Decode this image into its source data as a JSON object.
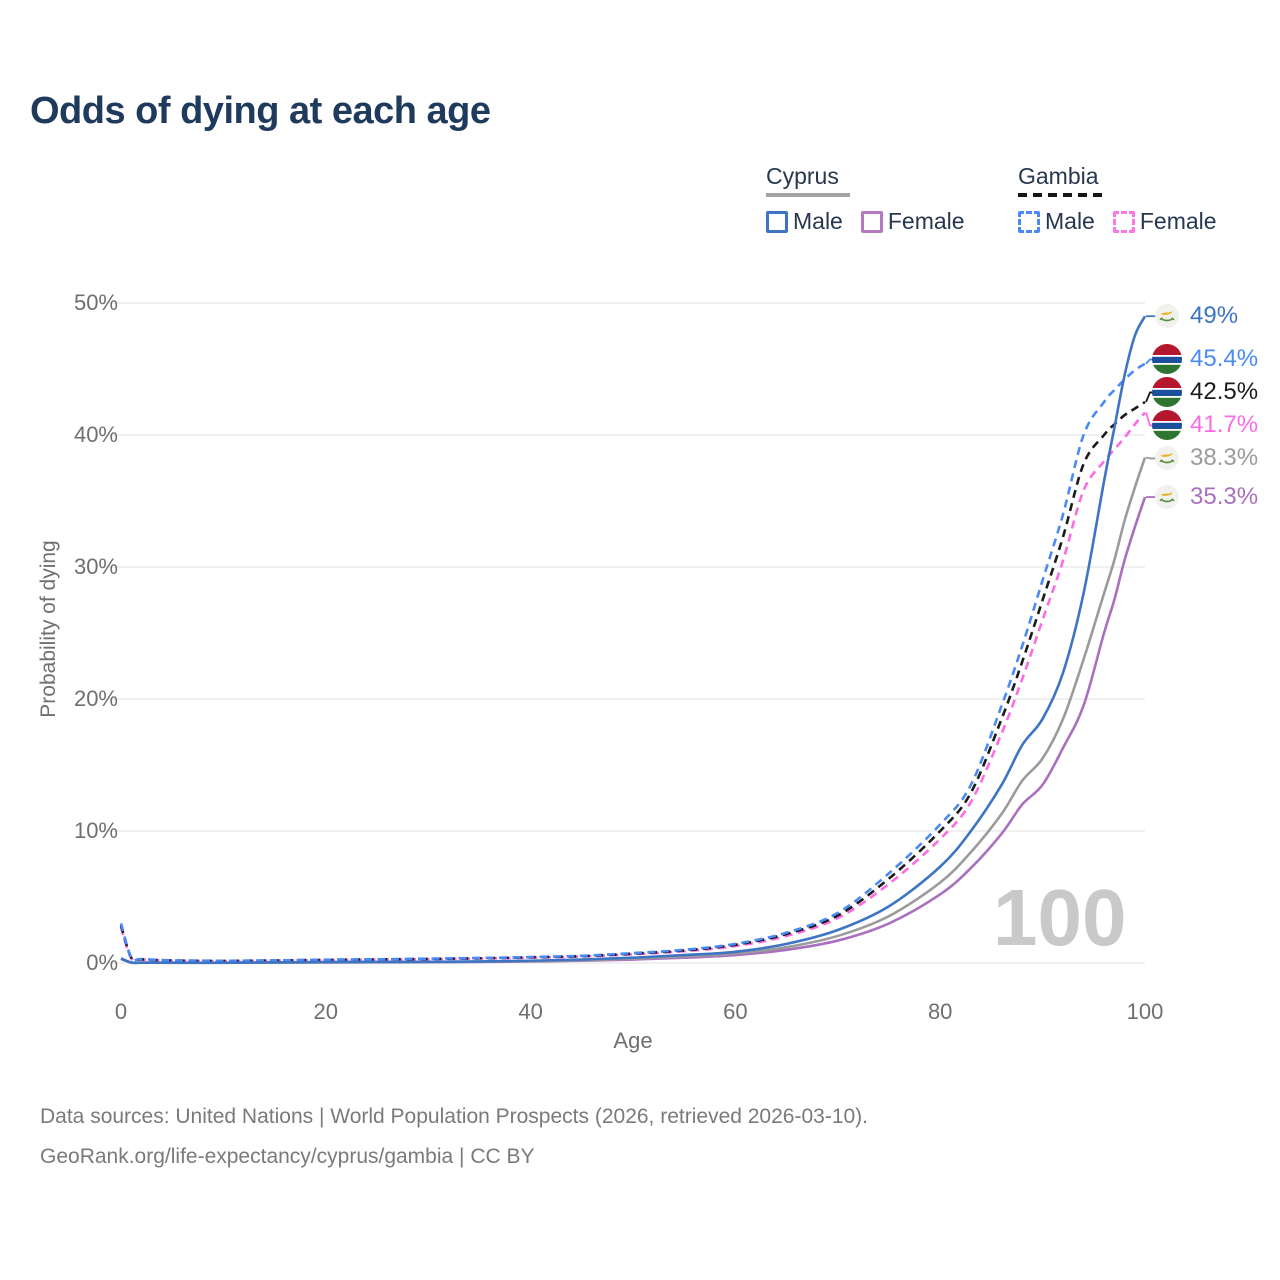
{
  "title": "Odds of dying at each age",
  "watermark": "100",
  "legend": {
    "groups": [
      {
        "country": "Cyprus",
        "line_style": "solid",
        "underline_color": "#a3a3a3",
        "items": [
          {
            "label": "Male",
            "color": "#3e74c4",
            "dashed": false
          },
          {
            "label": "Female",
            "color": "#b678c0",
            "dashed": false
          }
        ]
      },
      {
        "country": "Gambia",
        "line_style": "dashed",
        "underline_color": "#161616",
        "items": [
          {
            "label": "Male",
            "color": "#4b8af5",
            "dashed": true
          },
          {
            "label": "Female",
            "color": "#fb77e8",
            "dashed": true
          }
        ]
      }
    ]
  },
  "chart_data": {
    "type": "line",
    "title": "Odds of dying at each age",
    "xlabel": "Age",
    "ylabel": "Probability of dying",
    "xlim": [
      0,
      100
    ],
    "ylim": [
      0,
      50
    ],
    "grid": "horizontal",
    "x_ticks": [
      {
        "value": 0,
        "label": "0"
      },
      {
        "value": 20,
        "label": "20"
      },
      {
        "value": 40,
        "label": "40"
      },
      {
        "value": 60,
        "label": "60"
      },
      {
        "value": 80,
        "label": "80"
      },
      {
        "value": 100,
        "label": "100"
      }
    ],
    "y_ticks": [
      {
        "value": 0,
        "label": "0%"
      },
      {
        "value": 10,
        "label": "10%"
      },
      {
        "value": 20,
        "label": "20%"
      },
      {
        "value": 30,
        "label": "30%"
      },
      {
        "value": 40,
        "label": "40%"
      },
      {
        "value": 50,
        "label": "50%"
      }
    ],
    "ages": [
      0,
      1,
      2,
      5,
      10,
      15,
      20,
      25,
      30,
      35,
      40,
      45,
      50,
      55,
      60,
      65,
      70,
      75,
      80,
      83,
      86,
      88,
      90,
      92,
      94,
      96,
      97,
      98,
      99,
      100
    ],
    "series": [
      {
        "name": "Cyprus Female",
        "country": "Cyprus",
        "sex": "Female",
        "line": "solid",
        "color": "#aa6fbe",
        "flag": "cyprus",
        "end_label": "35.3%",
        "end_value": 35.3,
        "values": [
          0.3,
          0.03,
          0.02,
          0.015,
          0.015,
          0.03,
          0.04,
          0.05,
          0.06,
          0.08,
          0.12,
          0.17,
          0.26,
          0.4,
          0.6,
          1.0,
          1.7,
          3.0,
          5.2,
          7.2,
          9.8,
          12.0,
          13.5,
          16.3,
          19.5,
          25.0,
          27.5,
          30.5,
          33.0,
          35.3
        ]
      },
      {
        "name": "Cyprus Both sexes",
        "country": "Cyprus",
        "sex": "Both",
        "line": "solid",
        "color": "#9b9b9b",
        "flag": "cyprus",
        "end_label": "38.3%",
        "end_value": 38.3,
        "values": [
          0.32,
          0.035,
          0.022,
          0.018,
          0.018,
          0.035,
          0.055,
          0.065,
          0.075,
          0.1,
          0.14,
          0.21,
          0.33,
          0.5,
          0.72,
          1.2,
          2.05,
          3.55,
          6.1,
          8.4,
          11.3,
          13.8,
          15.5,
          18.5,
          23.0,
          28.0,
          30.5,
          33.5,
          36.0,
          38.3
        ]
      },
      {
        "name": "Gambia Female",
        "country": "Gambia",
        "sex": "Female",
        "line": "dashed",
        "color": "#fb6ce4",
        "flag": "gambia",
        "end_label": "41.7%",
        "end_value": 41.7,
        "values": [
          2.7,
          0.38,
          0.26,
          0.18,
          0.15,
          0.18,
          0.22,
          0.25,
          0.29,
          0.34,
          0.4,
          0.49,
          0.66,
          0.89,
          1.28,
          2.05,
          3.4,
          6.0,
          9.4,
          12.2,
          17.4,
          21.5,
          26.0,
          30.5,
          35.8,
          38.0,
          38.9,
          39.8,
          40.8,
          41.7
        ]
      },
      {
        "name": "Gambia Both sexes",
        "country": "Gambia",
        "sex": "Both",
        "line": "dashed",
        "color": "#1b1b1b",
        "flag": "gambia",
        "end_label": "42.5%",
        "end_value": 42.5,
        "values": [
          2.85,
          0.4,
          0.28,
          0.19,
          0.16,
          0.19,
          0.24,
          0.27,
          0.31,
          0.36,
          0.43,
          0.52,
          0.71,
          0.95,
          1.38,
          2.2,
          3.6,
          6.4,
          10.0,
          12.9,
          18.5,
          22.8,
          27.5,
          32.3,
          37.8,
          40.0,
          40.8,
          41.5,
          42.0,
          42.5
        ]
      },
      {
        "name": "Gambia Male",
        "country": "Gambia",
        "sex": "Male",
        "line": "dashed",
        "color": "#4b8af5",
        "flag": "gambia",
        "end_label": "45.4%",
        "end_value": 45.4,
        "values": [
          3.0,
          0.42,
          0.3,
          0.2,
          0.17,
          0.2,
          0.25,
          0.28,
          0.33,
          0.38,
          0.45,
          0.55,
          0.75,
          1.0,
          1.45,
          2.3,
          3.8,
          6.8,
          10.5,
          13.5,
          19.5,
          24.0,
          29.0,
          34.0,
          40.0,
          42.5,
          43.4,
          44.2,
          44.9,
          45.4
        ]
      },
      {
        "name": "Cyprus Male",
        "country": "Cyprus",
        "sex": "Male",
        "line": "solid",
        "color": "#3e74c4",
        "flag": "cyprus",
        "end_label": "49%",
        "end_value": 49.0,
        "values": [
          0.35,
          0.04,
          0.025,
          0.02,
          0.02,
          0.04,
          0.07,
          0.08,
          0.09,
          0.12,
          0.17,
          0.26,
          0.4,
          0.6,
          0.85,
          1.45,
          2.5,
          4.3,
          7.3,
          10.0,
          13.5,
          16.5,
          18.5,
          22.0,
          28.0,
          36.5,
          40.5,
          44.5,
          47.5,
          49.0
        ]
      }
    ]
  },
  "footer": {
    "line1": "Data sources: United Nations | World Population Prospects (2026, retrieved 2026-03-10).",
    "line2": "GeoRank.org/life-expectancy/cyprus/gambia | CC BY"
  }
}
